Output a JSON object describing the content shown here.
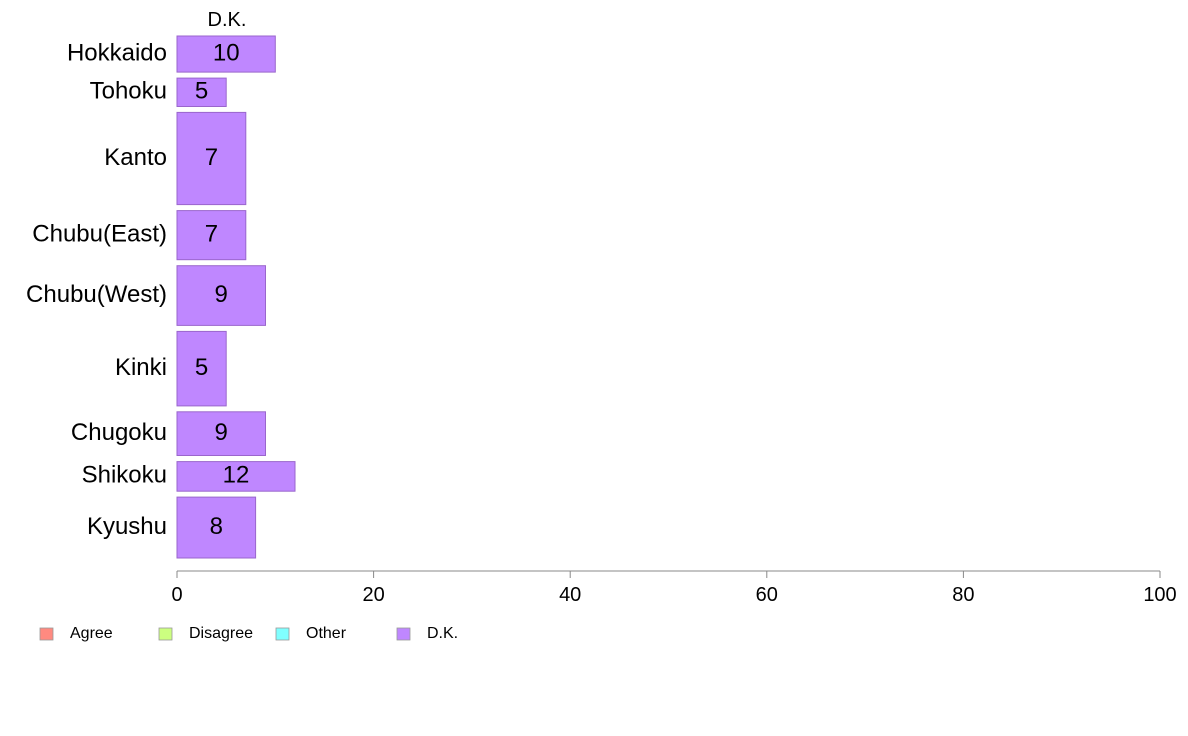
{
  "chart_data": {
    "type": "bar",
    "orientation": "horizontal",
    "categories": [
      "Hokkaido",
      "Tohoku",
      "Kanto",
      "Chubu(East)",
      "Chubu(West)",
      "Kinki",
      "Chugoku",
      "Shikoku",
      "Kyushu"
    ],
    "category_weights": [
      0.061,
      0.048,
      0.156,
      0.083,
      0.101,
      0.126,
      0.074,
      0.05,
      0.103
    ],
    "series": [
      {
        "name": "D.K.",
        "values": [
          10,
          5,
          7,
          7,
          9,
          5,
          9,
          12,
          8
        ],
        "color": "#bf87ff"
      }
    ],
    "series_header": "D.K.",
    "xlim": [
      0,
      100
    ],
    "xticks": [
      "0",
      "20",
      "40",
      "60",
      "80",
      "100"
    ],
    "grid": false,
    "legend": {
      "placement": "bottom-left",
      "items": [
        {
          "label": "Agree",
          "color": "#ff8a80"
        },
        {
          "label": "Disagree",
          "color": "#ccff80"
        },
        {
          "label": "Other",
          "color": "#80ffff"
        },
        {
          "label": "D.K.",
          "color": "#bf87ff"
        }
      ]
    }
  }
}
